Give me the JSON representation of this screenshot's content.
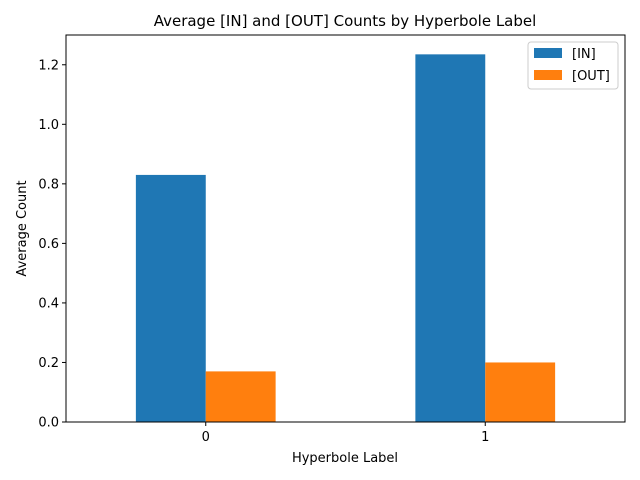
{
  "chart_data": {
    "type": "bar",
    "title": "Average [IN] and [OUT] Counts by Hyperbole Label",
    "xlabel": "Hyperbole Label",
    "ylabel": "Average Count",
    "categories": [
      "0",
      "1"
    ],
    "series": [
      {
        "name": "[IN]",
        "values": [
          0.83,
          1.235
        ],
        "color": "#1f77b4"
      },
      {
        "name": "[OUT]",
        "values": [
          0.17,
          0.2
        ],
        "color": "#ff7f0e"
      }
    ],
    "ylim": [
      0,
      1.3
    ],
    "yticks": [
      0.0,
      0.2,
      0.4,
      0.6,
      0.8,
      1.0,
      1.2
    ],
    "ytick_labels": [
      "0.0",
      "0.2",
      "0.4",
      "0.6",
      "0.8",
      "1.0",
      "1.2"
    ],
    "grid": false,
    "legend_position": "top-right"
  }
}
